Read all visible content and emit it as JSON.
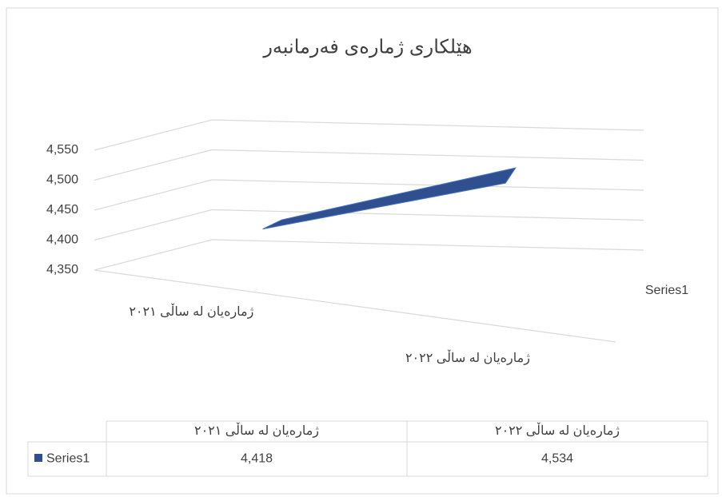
{
  "chart_data": {
    "type": "line3d",
    "title": "هێلکاری ژمارەی فەرمانبەر",
    "categories": [
      "ژمارەیان لە ساڵی ٢٠٢١",
      "ژمارەیان لە ساڵی ٢٠٢٢"
    ],
    "series": [
      {
        "name": "Series1",
        "color": "#2f4f8f",
        "values": [
          4418,
          4534
        ],
        "value_labels": [
          "4,418",
          "4,534"
        ]
      }
    ],
    "ylim": [
      4350,
      4550
    ],
    "yticks": [
      {
        "value": 4350,
        "label": "4,350"
      },
      {
        "value": 4400,
        "label": "4,400"
      },
      {
        "value": 4450,
        "label": "4,450"
      },
      {
        "value": 4500,
        "label": "4,500"
      },
      {
        "value": 4550,
        "label": "4,550"
      }
    ],
    "grid": true,
    "legend": "right",
    "data_table": true
  }
}
